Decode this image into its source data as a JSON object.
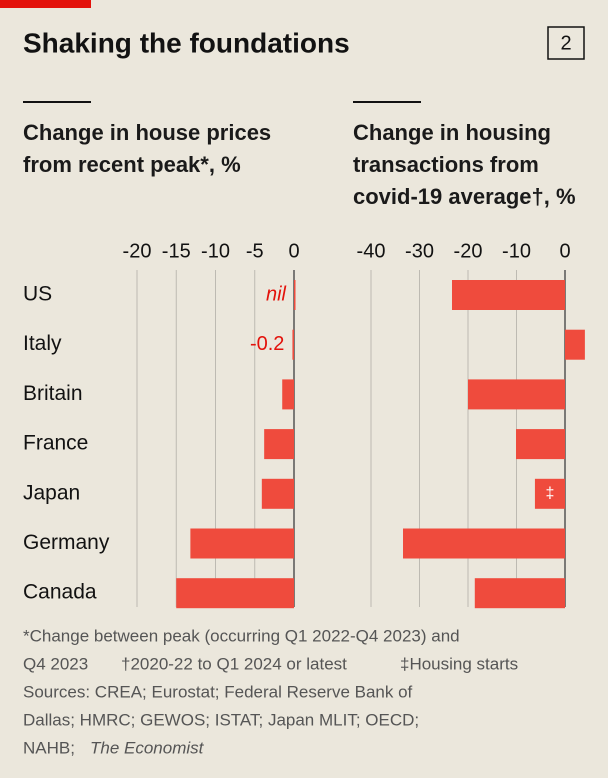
{
  "header": {
    "title": "Shaking the foundations",
    "badge": "2"
  },
  "chart_data": [
    {
      "type": "bar",
      "subtitle_lines": [
        "Change in house prices",
        "from recent peak*, %"
      ],
      "categories": [
        "US",
        "Italy",
        "Britain",
        "France",
        "Japan",
        "Germany",
        "Canada"
      ],
      "values": [
        0,
        -0.2,
        -1.5,
        -3.8,
        -4.1,
        -13.2,
        -15.0
      ],
      "value_labels": [
        "nil",
        "-0.2",
        null,
        null,
        null,
        null,
        null
      ],
      "color": "#ef4b3d",
      "xlim": [
        -20,
        0
      ],
      "xticks": [
        -20,
        -15,
        -10,
        -5,
        0
      ],
      "grid": true
    },
    {
      "type": "bar",
      "subtitle_lines": [
        "Change in housing",
        "transactions from",
        "covid-19 average†, %"
      ],
      "values": [
        -23.3,
        4.1,
        -20.0,
        -10.1,
        -6.2,
        -33.4,
        -18.6
      ],
      "annotation": {
        "category": "Japan",
        "text": "‡"
      },
      "color": "#ef4b3d",
      "xlim": [
        -40,
        4
      ],
      "xticks": [
        -40,
        -30,
        -20,
        -10,
        0
      ],
      "grid": true
    }
  ],
  "footnotes": {
    "line1": "*Change between peak (occurring Q1 2022-Q4 2023) and",
    "line2a": "Q4 2023",
    "line2b": "†2020-22 to Q1 2024 or latest",
    "line2c": "‡Housing starts",
    "line3": "Sources: CREA; Eurostat; Federal Reserve Bank of",
    "line4": "Dallas; HMRC; GEWOS; ISTAT; Japan MLIT; OECD;",
    "line5": "NAHB;",
    "line5_italic": "The Economist"
  }
}
